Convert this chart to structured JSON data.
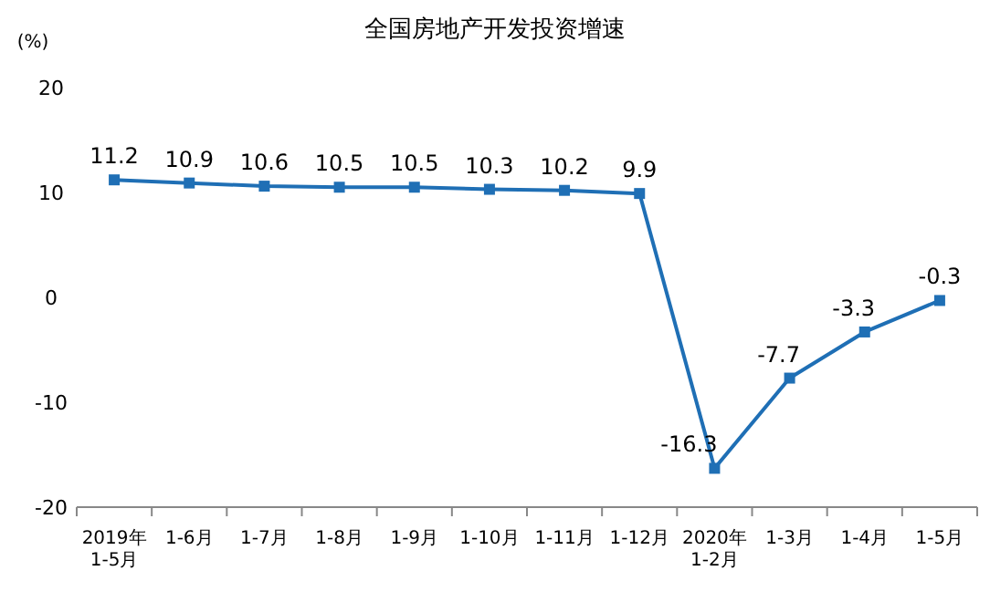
{
  "chart_data": {
    "type": "line",
    "title": "全国房地产开发投资增速",
    "ylabel": "(%)",
    "categories": [
      "2019年\n1-5月",
      "1-6月",
      "1-7月",
      "1-8月",
      "1-9月",
      "1-10月",
      "1-11月",
      "1-12月",
      "2020年\n1-2月",
      "1-3月",
      "1-4月",
      "1-5月"
    ],
    "series": [
      {
        "color": "#1f6fb5",
        "values": [
          11.2,
          10.9,
          10.6,
          10.5,
          10.5,
          10.3,
          10.2,
          9.9,
          -16.3,
          -7.7,
          -3.3,
          -0.3
        ]
      }
    ],
    "ylim": [
      -20,
      20
    ],
    "yticks": [
      -20,
      -10,
      0,
      10,
      20
    ],
    "marker": "square",
    "line_style": "solid",
    "data_labels": true,
    "grid": false
  }
}
